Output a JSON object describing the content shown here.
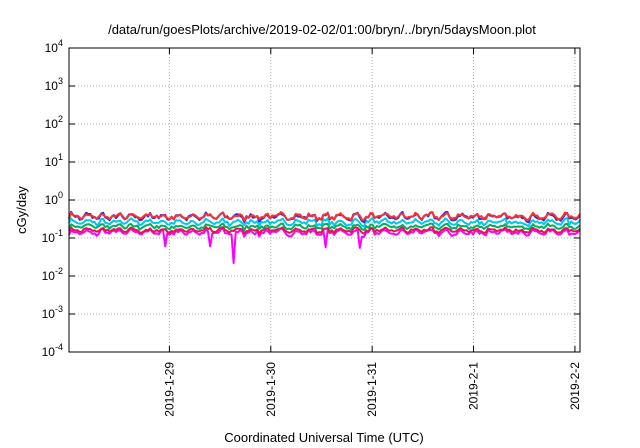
{
  "chart_data": {
    "type": "line",
    "title": "/data/run/goesPlots/archive/2019-02-02/01:00/bryn/../bryn/5daysMoon.plot",
    "xlabel": "Coordinated Universal Time (UTC)",
    "ylabel": "cGy/day",
    "yscale": "log",
    "ylim_exp": [
      -4,
      4
    ],
    "y_ticks": [
      {
        "base": "10",
        "exp": "-4"
      },
      {
        "base": "10",
        "exp": "-3"
      },
      {
        "base": "10",
        "exp": "-2"
      },
      {
        "base": "10",
        "exp": "-1"
      },
      {
        "base": "10",
        "exp": "0"
      },
      {
        "base": "10",
        "exp": "1"
      },
      {
        "base": "10",
        "exp": "2"
      },
      {
        "base": "10",
        "exp": "3"
      },
      {
        "base": "10",
        "exp": "4"
      }
    ],
    "x_ticks": [
      "2019-1-29",
      "2019-1-30",
      "2019-1-31",
      "2019-2-1",
      "2019-2-2"
    ],
    "grid": true,
    "series": [
      {
        "color": "#ff00ff",
        "level": 0.14,
        "amp": 0.1,
        "dips": [
          {
            "x": 0.64,
            "value": 0.022
          },
          {
            "x": -0.04,
            "value": 0.06
          },
          {
            "x": 0.4,
            "value": 0.06
          },
          {
            "x": 1.54,
            "value": 0.057
          },
          {
            "x": 1.88,
            "value": 0.055
          },
          {
            "x": 4.15,
            "value": 0.11
          }
        ]
      },
      {
        "color": "#e0174a",
        "level": 0.16,
        "amp": 0.08,
        "dips": []
      },
      {
        "color": "#00b060",
        "level": 0.2,
        "amp": 0.08,
        "dips": []
      },
      {
        "color": "#00c8e8",
        "level": 0.26,
        "amp": 0.1,
        "dips": []
      },
      {
        "color": "#3030e0",
        "level": 0.36,
        "amp": 0.12,
        "dips": []
      },
      {
        "color": "#ff3030",
        "level": 0.37,
        "amp": 0.1,
        "dips": []
      }
    ],
    "colors": {
      "grid": "#b0b0b0",
      "axis": "#000000"
    }
  }
}
